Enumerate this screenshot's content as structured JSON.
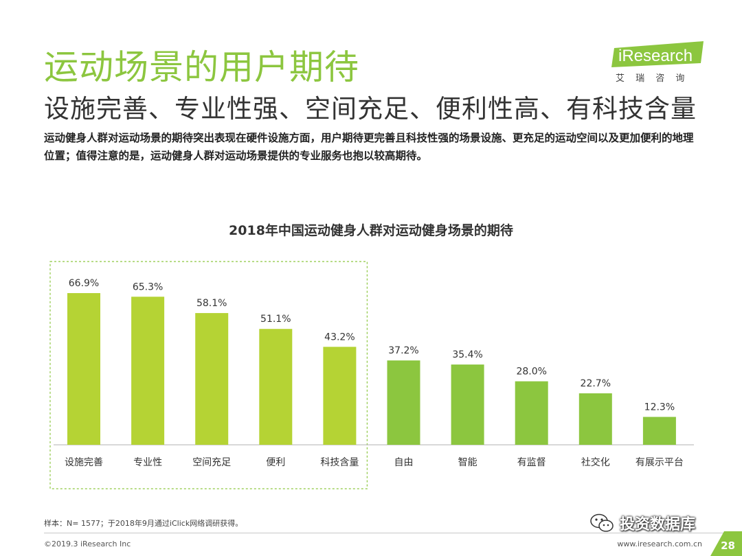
{
  "header": {
    "title": "运动场景的用户期待",
    "subtitle": "设施完善、专业性强、空间充足、便利性高、有科技含量",
    "description": "运动健身人群对运动场景的期待突出表现在硬件设施方面，用户期待更完善且科技性强的场景设施、更充足的运动空间以及更加便利的地理位置；值得注意的是，运动健身人群对运动场景提供的专业服务也抱以较高期待。"
  },
  "logo": {
    "text": "iResearch",
    "subtext": "艾 瑞 咨 询",
    "color": "#8cc63f"
  },
  "chart_data": {
    "type": "bar",
    "title": "2018年中国运动健身人群对运动健身场景的期待",
    "categories": [
      "设施完善",
      "专业性",
      "空间充足",
      "便利",
      "科技含量",
      "自由",
      "智能",
      "有监督",
      "社交化",
      "有展示平台"
    ],
    "values": [
      66.9,
      65.3,
      58.1,
      51.1,
      43.2,
      37.2,
      35.4,
      28.0,
      22.7,
      12.3
    ],
    "value_labels": [
      "66.9%",
      "65.3%",
      "58.1%",
      "51.1%",
      "43.2%",
      "37.2%",
      "35.4%",
      "28.0%",
      "22.7%",
      "12.3%"
    ],
    "unit": "%",
    "ylim": [
      0,
      70
    ],
    "grid": false,
    "highlighted_count": 5,
    "highlight_color": "#b5d334",
    "base_color": "#8cc63f",
    "highlight_box_color": "#8cc63f"
  },
  "footer": {
    "note": "样本：N= 1577；于2018年9月通过iClick网络调研获得。",
    "copyright": "©2019.3  iResearch Inc",
    "website": "www.iresearch.com.cn",
    "page_number": "28",
    "watermark": "投资数据库",
    "corner_color": "#8cc63f"
  }
}
